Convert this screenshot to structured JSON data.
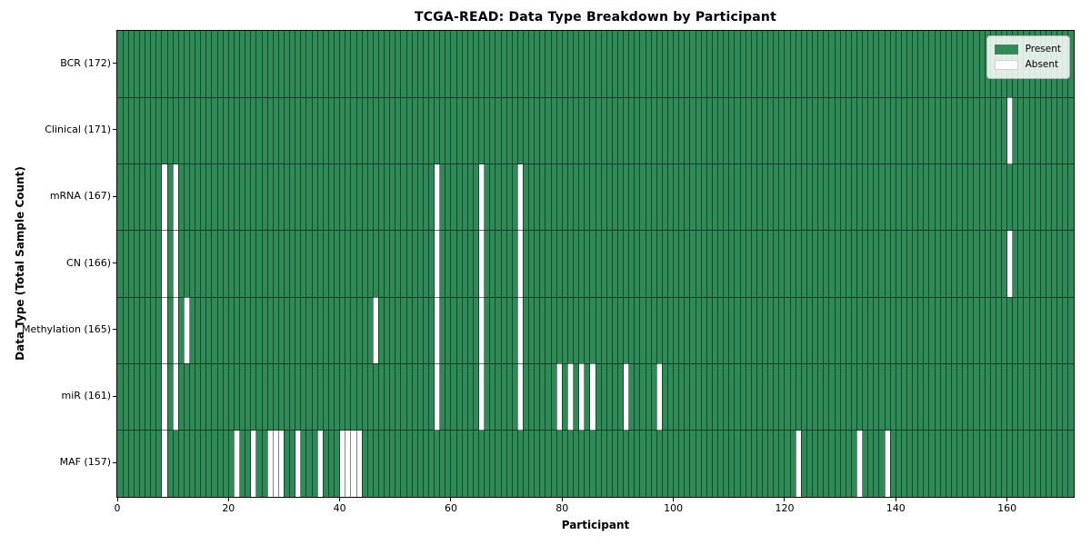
{
  "title": "TCGA-READ: Data Type Breakdown by Participant",
  "axis": {
    "xlabel": "Participant",
    "ylabel": "Data Type (Total Sample Count)"
  },
  "legend": {
    "present": "Present",
    "absent": "Absent"
  },
  "colors": {
    "present": "#2e8b57",
    "absent": "#ffffff",
    "grid": "#1c4a30",
    "background": "#ffffff"
  },
  "chart_data": {
    "type": "heatmap",
    "n_participants": 172,
    "xlim": [
      0,
      172
    ],
    "x_ticks": [
      0,
      20,
      40,
      60,
      80,
      100,
      120,
      140,
      160
    ],
    "grid": true,
    "legend_position": "upper right",
    "legend_entries": [
      "Present",
      "Absent"
    ],
    "rows": [
      {
        "label": "BCR (172)",
        "data_type": "BCR",
        "total_samples": 172,
        "absent_participants": []
      },
      {
        "label": "Clinical (171)",
        "data_type": "Clinical",
        "total_samples": 171,
        "absent_participants": [
          160
        ]
      },
      {
        "label": "mRNA (167)",
        "data_type": "mRNA",
        "total_samples": 167,
        "absent_participants": [
          8,
          10,
          57,
          65,
          72
        ]
      },
      {
        "label": "CN (166)",
        "data_type": "CN",
        "total_samples": 166,
        "absent_participants": [
          8,
          10,
          57,
          65,
          72,
          160
        ]
      },
      {
        "label": "Methylation (165)",
        "data_type": "Methylation",
        "total_samples": 165,
        "absent_participants": [
          8,
          10,
          12,
          46,
          57,
          65,
          72
        ]
      },
      {
        "label": "miR (161)",
        "data_type": "miR",
        "total_samples": 161,
        "absent_participants": [
          8,
          10,
          57,
          65,
          72,
          79,
          81,
          83,
          85,
          91,
          97
        ]
      },
      {
        "label": "MAF (157)",
        "data_type": "MAF",
        "total_samples": 157,
        "absent_participants": [
          8,
          21,
          24,
          27,
          28,
          29,
          32,
          36,
          40,
          41,
          42,
          43,
          122,
          133,
          138
        ]
      }
    ]
  }
}
